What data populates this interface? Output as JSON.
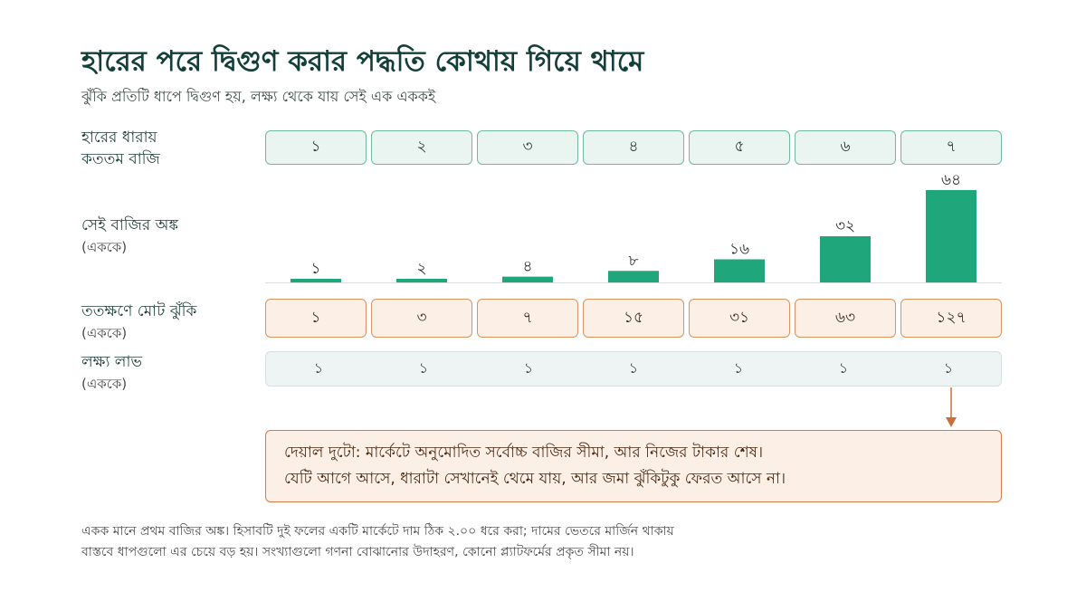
{
  "title": "হারের পরে দ্বিগুণ করার পদ্ধতি কোথায় গিয়ে থামে",
  "subtitle": "ঝুঁকি প্রতিটি ধাপে দ্বিগুণ হয়, লক্ষ্য থেকে যায় সেই এক এককই",
  "rows": {
    "index_label_1": "হারের ধারায়",
    "index_label_2": "কততম বাজি",
    "stake_label": "সেই বাজির অঙ্ক",
    "stake_sub": "(এককে)",
    "risk_label": "ততক্ষণে মোট ঝুঁকি",
    "risk_sub": "(এককে)",
    "goal_label": "লক্ষ্য লাভ",
    "goal_sub": "(এককে)"
  },
  "index_cells": [
    "১",
    "২",
    "৩",
    "৪",
    "৫",
    "৬",
    "৭"
  ],
  "risk_cells": [
    "১",
    "৩",
    "৭",
    "১৫",
    "৩১",
    "৬৩",
    "১২৭"
  ],
  "goal_cells": [
    "১",
    "১",
    "১",
    "১",
    "১",
    "১",
    "১"
  ],
  "chart_data": {
    "type": "bar",
    "categories": [
      "১",
      "২",
      "৩",
      "৪",
      "৫",
      "৬",
      "৭"
    ],
    "values": [
      1,
      2,
      4,
      8,
      16,
      32,
      64
    ],
    "value_labels": [
      "১",
      "২",
      "৪",
      "৮",
      "১৬",
      "৩২",
      "৬৪"
    ],
    "ylim": [
      0,
      64
    ],
    "grid": false
  },
  "note": {
    "line1": "দেয়াল দুটো: মার্কেটে অনুমোদিত সর্বোচ্চ বাজির সীমা, আর নিজের টাকার শেষ।",
    "line2": "যেটি আগে আসে, ধারাটা সেখানেই থেমে যায়, আর জমা ঝুঁকিটুকু ফেরত আসে না।"
  },
  "footer": {
    "line1": "একক মানে প্রথম বাজির অঙ্ক। হিসাবটি দুই ফলের একটি মার্কেটে দাম ঠিক ২.০০ ধরে করা; দামের ভেতরে মার্জিন থাকায়",
    "line2": "বাস্তবে ধাপগুলো এর চেয়ে বড় হয়। সংখ্যাগুলো গণনা বোঝানোর উদাহরণ, কোনো প্ল্যাটফর্মের প্রকৃত সীমা নয়।"
  },
  "colors": {
    "bar": "#1fa67a",
    "title": "#123f38",
    "accent_orange": "#d07c45"
  }
}
